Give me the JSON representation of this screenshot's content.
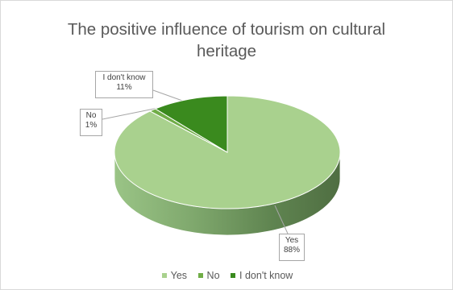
{
  "chart_data": {
    "type": "pie",
    "title": "The positive influence of tourism on cultural heritage",
    "categories": [
      "Yes",
      "No",
      "I don't know"
    ],
    "values": [
      88,
      1,
      11
    ],
    "data_labels": [
      "88%",
      "1%",
      "11%"
    ],
    "colors": [
      "#a9d18e",
      "#70ad47",
      "#3a8a1e"
    ],
    "legend_position": "bottom",
    "style": "3d"
  }
}
